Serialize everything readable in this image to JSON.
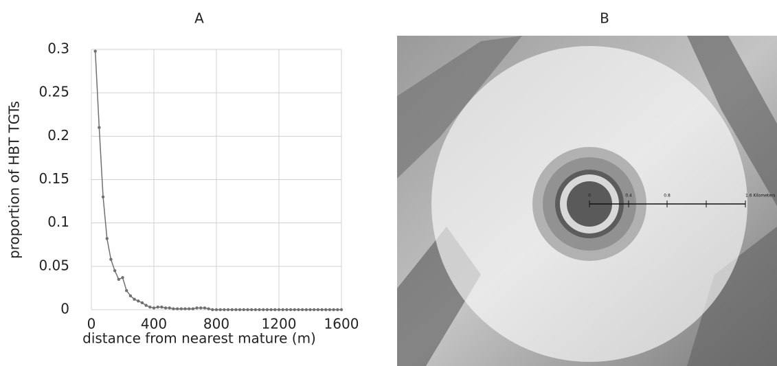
{
  "chart_data": {
    "type": "line",
    "title": "A",
    "xlabel": "distance from nearest mature (m)",
    "ylabel": "proportion of HBT TGTs",
    "x": [
      25,
      50,
      75,
      100,
      125,
      150,
      175,
      200,
      225,
      250,
      275,
      300,
      325,
      350,
      375,
      400,
      425,
      450,
      475,
      500,
      525,
      550,
      575,
      600,
      625,
      650,
      675,
      700,
      725,
      750,
      775,
      800,
      825,
      850,
      875,
      900,
      925,
      950,
      975,
      1000,
      1025,
      1050,
      1075,
      1100,
      1125,
      1150,
      1175,
      1200,
      1225,
      1250,
      1275,
      1300,
      1325,
      1350,
      1375,
      1400,
      1425,
      1450,
      1475,
      1500,
      1525,
      1550,
      1575,
      1600
    ],
    "series": [
      {
        "color": "#707070",
        "values": [
          0.298,
          0.21,
          0.13,
          0.082,
          0.058,
          0.045,
          0.035,
          0.037,
          0.022,
          0.016,
          0.012,
          0.01,
          0.008,
          0.005,
          0.003,
          0.002,
          0.003,
          0.003,
          0.002,
          0.002,
          0.001,
          0.001,
          0.001,
          0.001,
          0.001,
          0.001,
          0.002,
          0.002,
          0.002,
          0.001,
          0,
          0,
          0,
          0,
          0,
          0,
          0,
          0,
          0,
          0,
          0,
          0,
          0,
          0,
          0,
          0,
          0,
          0,
          0,
          0,
          0,
          0,
          0,
          0,
          0,
          0,
          0,
          0,
          0,
          0,
          0,
          0,
          0,
          0
        ]
      }
    ],
    "xlim": [
      0,
      1600
    ],
    "xticks": [
      0,
      400,
      800,
      1200,
      1600
    ],
    "ylim": [
      0,
      0.3
    ],
    "yticks": [
      0,
      0.05,
      0.1,
      0.15,
      0.2,
      0.25,
      0.3
    ],
    "grid": true
  },
  "map": {
    "title": "B",
    "scale_labels": [
      "0",
      "0.4",
      "0.8",
      "1.6 Kilometers"
    ]
  }
}
